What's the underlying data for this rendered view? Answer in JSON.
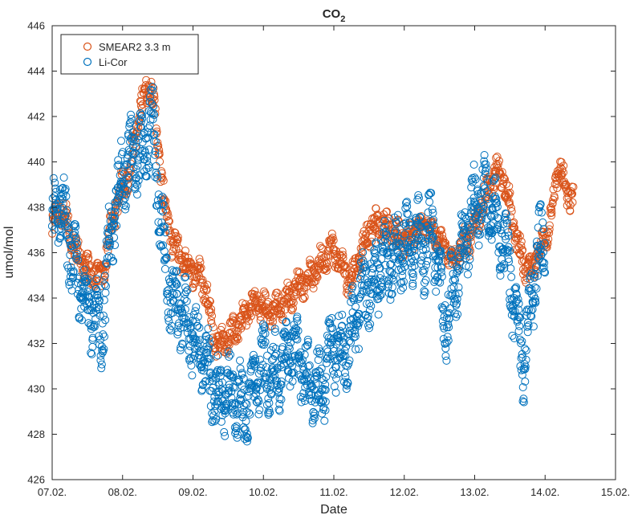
{
  "chart_data": {
    "type": "scatter",
    "title": "CO",
    "title_subscript": "2",
    "xlabel": "Date",
    "ylabel": "umol/mol",
    "xlim": [
      0,
      8
    ],
    "ylim": [
      426,
      446
    ],
    "xticks": [
      0,
      1,
      2,
      3,
      4,
      5,
      6,
      7,
      8
    ],
    "xtick_labels": [
      "07.02.",
      "08.02.",
      "09.02.",
      "10.02.",
      "11.02.",
      "12.02.",
      "13.02.",
      "14.02.",
      "15.02."
    ],
    "yticks": [
      426,
      428,
      430,
      432,
      434,
      436,
      438,
      440,
      442,
      444,
      446
    ],
    "ytick_labels": [
      "426",
      "428",
      "430",
      "432",
      "434",
      "436",
      "438",
      "440",
      "442",
      "444",
      "446"
    ],
    "legend_position": "top-left",
    "series": [
      {
        "name": "SMEAR2 3.3 m",
        "color": "#d95319",
        "marker": "open-circle",
        "x_unit": "days since 07.02.",
        "trend": [
          [
            0.0,
            437.0
          ],
          [
            0.1,
            438.0
          ],
          [
            0.2,
            437.5
          ],
          [
            0.3,
            436.0
          ],
          [
            0.4,
            435.8
          ],
          [
            0.5,
            435.2
          ],
          [
            0.6,
            435.0
          ],
          [
            0.7,
            434.8
          ],
          [
            0.8,
            436.5
          ],
          [
            0.9,
            438.0
          ],
          [
            1.0,
            439.0
          ],
          [
            1.1,
            439.5
          ],
          [
            1.2,
            441.5
          ],
          [
            1.3,
            443.0
          ],
          [
            1.4,
            443.5
          ],
          [
            1.5,
            441.0
          ],
          [
            1.6,
            438.0
          ],
          [
            1.7,
            436.5
          ],
          [
            1.8,
            436.0
          ],
          [
            1.9,
            435.5
          ],
          [
            2.0,
            435.2
          ],
          [
            2.1,
            435.0
          ],
          [
            2.2,
            434.2
          ],
          [
            2.3,
            432.2
          ],
          [
            2.4,
            432.0
          ],
          [
            2.5,
            432.3
          ],
          [
            2.6,
            432.6
          ],
          [
            2.7,
            433.0
          ],
          [
            2.8,
            433.6
          ],
          [
            2.9,
            433.8
          ],
          [
            3.0,
            433.6
          ],
          [
            3.1,
            433.4
          ],
          [
            3.2,
            433.6
          ],
          [
            3.3,
            433.8
          ],
          [
            3.4,
            434.2
          ],
          [
            3.5,
            434.6
          ],
          [
            3.6,
            434.8
          ],
          [
            3.7,
            435.0
          ],
          [
            3.8,
            435.5
          ],
          [
            3.9,
            436.0
          ],
          [
            4.0,
            436.2
          ],
          [
            4.1,
            435.5
          ],
          [
            4.2,
            434.8
          ],
          [
            4.3,
            435.2
          ],
          [
            4.4,
            436.2
          ],
          [
            4.5,
            437.0
          ],
          [
            4.6,
            437.2
          ],
          [
            4.7,
            437.3
          ],
          [
            4.8,
            437.0
          ],
          [
            4.9,
            436.8
          ],
          [
            5.0,
            436.5
          ],
          [
            5.1,
            436.8
          ],
          [
            5.2,
            437.0
          ],
          [
            5.3,
            437.2
          ],
          [
            5.4,
            437.0
          ],
          [
            5.5,
            436.5
          ],
          [
            5.6,
            436.0
          ],
          [
            5.7,
            435.8
          ],
          [
            5.8,
            436.2
          ],
          [
            5.9,
            436.5
          ],
          [
            6.0,
            437.0
          ],
          [
            6.1,
            438.0
          ],
          [
            6.2,
            438.8
          ],
          [
            6.3,
            439.5
          ],
          [
            6.4,
            439.5
          ],
          [
            6.5,
            438.0
          ],
          [
            6.6,
            436.5
          ],
          [
            6.7,
            435.5
          ],
          [
            6.8,
            435.0
          ],
          [
            6.9,
            436.0
          ],
          [
            7.0,
            436.5
          ],
          [
            7.1,
            438.0
          ],
          [
            7.2,
            440.0
          ],
          [
            7.3,
            438.5
          ],
          [
            7.4,
            438.5
          ]
        ]
      },
      {
        "name": "Li-Cor",
        "color": "#0072bd",
        "marker": "open-circle",
        "x_unit": "days since 07.02.",
        "trend": [
          [
            0.0,
            437.0
          ],
          [
            0.1,
            438.5
          ],
          [
            0.2,
            437.0
          ],
          [
            0.3,
            435.5
          ],
          [
            0.4,
            434.5
          ],
          [
            0.5,
            434.0
          ],
          [
            0.6,
            433.0
          ],
          [
            0.7,
            432.5
          ],
          [
            0.8,
            436.0
          ],
          [
            0.9,
            438.0
          ],
          [
            1.0,
            439.5
          ],
          [
            1.1,
            440.0
          ],
          [
            1.2,
            440.5
          ],
          [
            1.3,
            440.2
          ],
          [
            1.4,
            442.0
          ],
          [
            1.5,
            439.0
          ],
          [
            1.6,
            435.5
          ],
          [
            1.7,
            434.0
          ],
          [
            1.8,
            433.5
          ],
          [
            1.9,
            433.0
          ],
          [
            2.0,
            432.5
          ],
          [
            2.1,
            431.5
          ],
          [
            2.2,
            430.8
          ],
          [
            2.3,
            430.0
          ],
          [
            2.4,
            429.5
          ],
          [
            2.5,
            430.0
          ],
          [
            2.6,
            429.8
          ],
          [
            2.7,
            429.2
          ],
          [
            2.8,
            429.5
          ],
          [
            2.9,
            430.5
          ],
          [
            3.0,
            431.0
          ],
          [
            3.1,
            430.8
          ],
          [
            3.2,
            430.5
          ],
          [
            3.3,
            431.5
          ],
          [
            3.4,
            432.0
          ],
          [
            3.5,
            431.8
          ],
          [
            3.6,
            430.5
          ],
          [
            3.7,
            430.0
          ],
          [
            3.8,
            429.8
          ],
          [
            3.9,
            431.0
          ],
          [
            4.0,
            432.0
          ],
          [
            4.1,
            431.5
          ],
          [
            4.2,
            432.0
          ],
          [
            4.3,
            433.0
          ],
          [
            4.4,
            434.0
          ],
          [
            4.5,
            434.5
          ],
          [
            4.6,
            435.0
          ],
          [
            4.7,
            435.2
          ],
          [
            4.8,
            435.8
          ],
          [
            4.9,
            436.0
          ],
          [
            5.0,
            436.2
          ],
          [
            5.1,
            436.5
          ],
          [
            5.2,
            436.5
          ],
          [
            5.3,
            436.0
          ],
          [
            5.4,
            437.5
          ],
          [
            5.5,
            434.5
          ],
          [
            5.6,
            433.0
          ],
          [
            5.7,
            434.5
          ],
          [
            5.8,
            436.0
          ],
          [
            5.9,
            437.0
          ],
          [
            6.0,
            438.0
          ],
          [
            6.1,
            438.5
          ],
          [
            6.2,
            438.0
          ],
          [
            6.3,
            437.5
          ],
          [
            6.4,
            436.5
          ],
          [
            6.5,
            435.0
          ],
          [
            6.6,
            433.0
          ],
          [
            6.7,
            431.0
          ],
          [
            6.8,
            434.0
          ],
          [
            6.9,
            436.0
          ],
          [
            7.0,
            436.5
          ]
        ]
      }
    ]
  }
}
